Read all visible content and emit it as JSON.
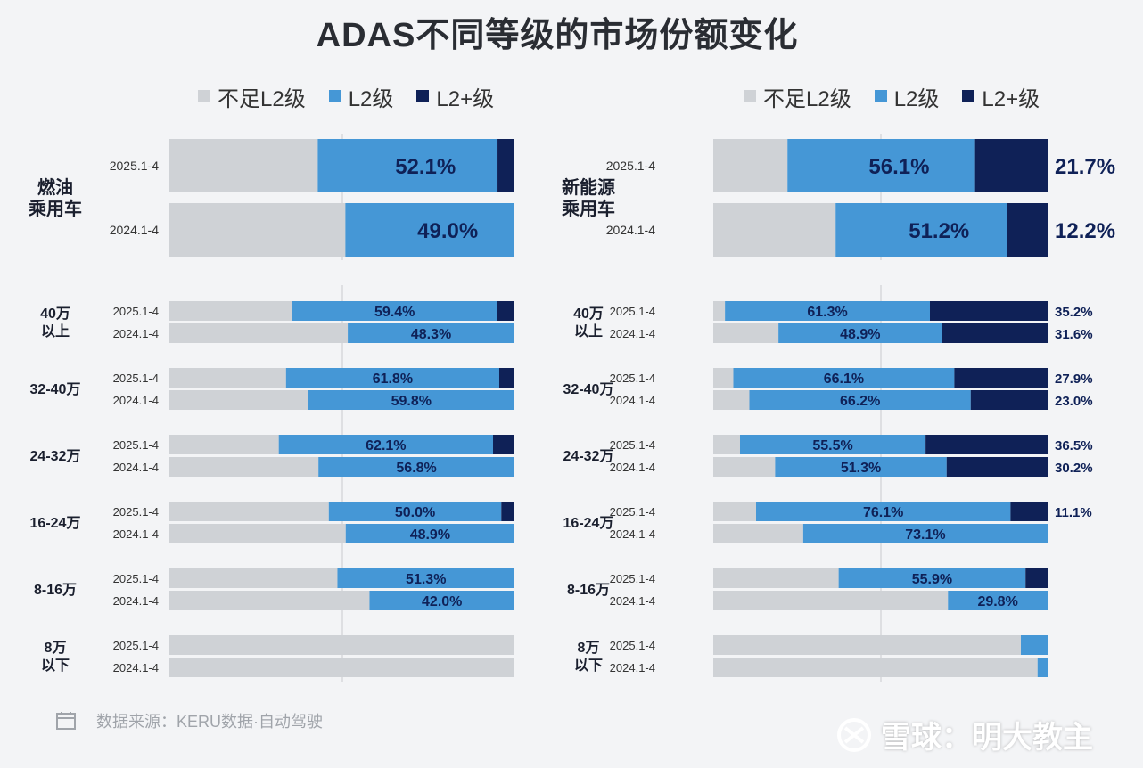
{
  "title": "ADAS不同等级的市场份额变化",
  "legend": [
    {
      "label": "不足L2级",
      "color": "#cfd2d6"
    },
    {
      "label": "L2级",
      "color": "#4597d6"
    },
    {
      "label": "L2+级",
      "color": "#0f2157"
    }
  ],
  "footer": {
    "source": "数据来源：KERU数据·自动驾驶"
  },
  "watermark": {
    "text": "雪球：明大教主"
  },
  "chart_data": [
    {
      "type": "bar",
      "stacked": true,
      "orientation": "horizontal",
      "panel": "left",
      "title": "ADAS不同等级的市场份额变化",
      "series_names": [
        "不足L2级",
        "L2级",
        "L2+级"
      ],
      "groups": [
        {
          "label_lines": [
            "燃油",
            "乘用车"
          ],
          "rows": [
            {
              "period": "2025.1-4",
              "values": [
                43.0,
                52.1,
                4.9
              ],
              "l2_label": "52.1%",
              "plus_label": ""
            },
            {
              "period": "2024.1-4",
              "values": [
                51.0,
                49.0,
                0.0
              ],
              "l2_label": "49.0%",
              "plus_label": ""
            }
          ]
        },
        {
          "label_lines": [
            "40万",
            "以上"
          ],
          "rows": [
            {
              "period": "2025.1-4",
              "values": [
                35.6,
                59.4,
                5.0
              ],
              "l2_label": "59.4%",
              "plus_label": ""
            },
            {
              "period": "2024.1-4",
              "values": [
                51.7,
                48.3,
                0.0
              ],
              "l2_label": "48.3%",
              "plus_label": ""
            }
          ]
        },
        {
          "label_lines": [
            "32-40万"
          ],
          "rows": [
            {
              "period": "2025.1-4",
              "values": [
                33.8,
                61.8,
                4.4
              ],
              "l2_label": "61.8%",
              "plus_label": ""
            },
            {
              "period": "2024.1-4",
              "values": [
                40.2,
                59.8,
                0.0
              ],
              "l2_label": "59.8%",
              "plus_label": ""
            }
          ]
        },
        {
          "label_lines": [
            "24-32万"
          ],
          "rows": [
            {
              "period": "2025.1-4",
              "values": [
                31.7,
                62.1,
                6.2
              ],
              "l2_label": "62.1%",
              "plus_label": ""
            },
            {
              "period": "2024.1-4",
              "values": [
                43.2,
                56.8,
                0.0
              ],
              "l2_label": "56.8%",
              "plus_label": ""
            }
          ]
        },
        {
          "label_lines": [
            "16-24万"
          ],
          "rows": [
            {
              "period": "2025.1-4",
              "values": [
                46.2,
                50.0,
                3.8
              ],
              "l2_label": "50.0%",
              "plus_label": ""
            },
            {
              "period": "2024.1-4",
              "values": [
                51.1,
                48.9,
                0.0
              ],
              "l2_label": "48.9%",
              "plus_label": ""
            }
          ]
        },
        {
          "label_lines": [
            "8-16万"
          ],
          "rows": [
            {
              "period": "2025.1-4",
              "values": [
                48.7,
                51.3,
                0.0
              ],
              "l2_label": "51.3%",
              "plus_label": ""
            },
            {
              "period": "2024.1-4",
              "values": [
                58.0,
                42.0,
                0.0
              ],
              "l2_label": "42.0%",
              "plus_label": ""
            }
          ]
        },
        {
          "label_lines": [
            "8万",
            "以下"
          ],
          "rows": [
            {
              "period": "2025.1-4",
              "values": [
                100,
                0,
                0
              ],
              "l2_label": "",
              "plus_label": ""
            },
            {
              "period": "2024.1-4",
              "values": [
                100,
                0,
                0
              ],
              "l2_label": "",
              "plus_label": ""
            }
          ]
        }
      ]
    },
    {
      "type": "bar",
      "stacked": true,
      "orientation": "horizontal",
      "panel": "right",
      "series_names": [
        "不足L2级",
        "L2级",
        "L2+级"
      ],
      "groups": [
        {
          "label_lines": [
            "新能源",
            "乘用车"
          ],
          "rows": [
            {
              "period": "2025.1-4",
              "values": [
                22.2,
                56.1,
                21.7
              ],
              "l2_label": "56.1%",
              "plus_label": "21.7%"
            },
            {
              "period": "2024.1-4",
              "values": [
                36.6,
                51.2,
                12.2
              ],
              "l2_label": "51.2%",
              "plus_label": "12.2%"
            }
          ]
        },
        {
          "label_lines": [
            "40万",
            "以上"
          ],
          "rows": [
            {
              "period": "2025.1-4",
              "values": [
                3.5,
                61.3,
                35.2
              ],
              "l2_label": "61.3%",
              "plus_label": "35.2%"
            },
            {
              "period": "2024.1-4",
              "values": [
                19.5,
                48.9,
                31.6
              ],
              "l2_label": "48.9%",
              "plus_label": "31.6%"
            }
          ]
        },
        {
          "label_lines": [
            "32-40万"
          ],
          "rows": [
            {
              "period": "2025.1-4",
              "values": [
                6.0,
                66.1,
                27.9
              ],
              "l2_label": "66.1%",
              "plus_label": "27.9%"
            },
            {
              "period": "2024.1-4",
              "values": [
                10.8,
                66.2,
                23.0
              ],
              "l2_label": "66.2%",
              "plus_label": "23.0%"
            }
          ]
        },
        {
          "label_lines": [
            "24-32万"
          ],
          "rows": [
            {
              "period": "2025.1-4",
              "values": [
                8.0,
                55.5,
                36.5
              ],
              "l2_label": "55.5%",
              "plus_label": "36.5%"
            },
            {
              "period": "2024.1-4",
              "values": [
                18.5,
                51.3,
                30.2
              ],
              "l2_label": "51.3%",
              "plus_label": "30.2%"
            }
          ]
        },
        {
          "label_lines": [
            "16-24万"
          ],
          "rows": [
            {
              "period": "2025.1-4",
              "values": [
                12.8,
                76.1,
                11.1
              ],
              "l2_label": "76.1%",
              "plus_label": "11.1%"
            },
            {
              "period": "2024.1-4",
              "values": [
                26.9,
                73.1,
                0.0
              ],
              "l2_label": "73.1%",
              "plus_label": ""
            }
          ]
        },
        {
          "label_lines": [
            "8-16万"
          ],
          "rows": [
            {
              "period": "2025.1-4",
              "values": [
                37.5,
                55.9,
                6.6
              ],
              "l2_label": "55.9%",
              "plus_label": ""
            },
            {
              "period": "2024.1-4",
              "values": [
                70.2,
                29.8,
                0.0
              ],
              "l2_label": "29.8%",
              "plus_label": ""
            }
          ]
        },
        {
          "label_lines": [
            "8万",
            "以下"
          ],
          "rows": [
            {
              "period": "2025.1-4",
              "values": [
                92.0,
                8.0,
                0.0
              ],
              "l2_label": "",
              "plus_label": ""
            },
            {
              "period": "2024.1-4",
              "values": [
                97.0,
                3.0,
                0.0
              ],
              "l2_label": "",
              "plus_label": ""
            }
          ]
        }
      ]
    }
  ]
}
